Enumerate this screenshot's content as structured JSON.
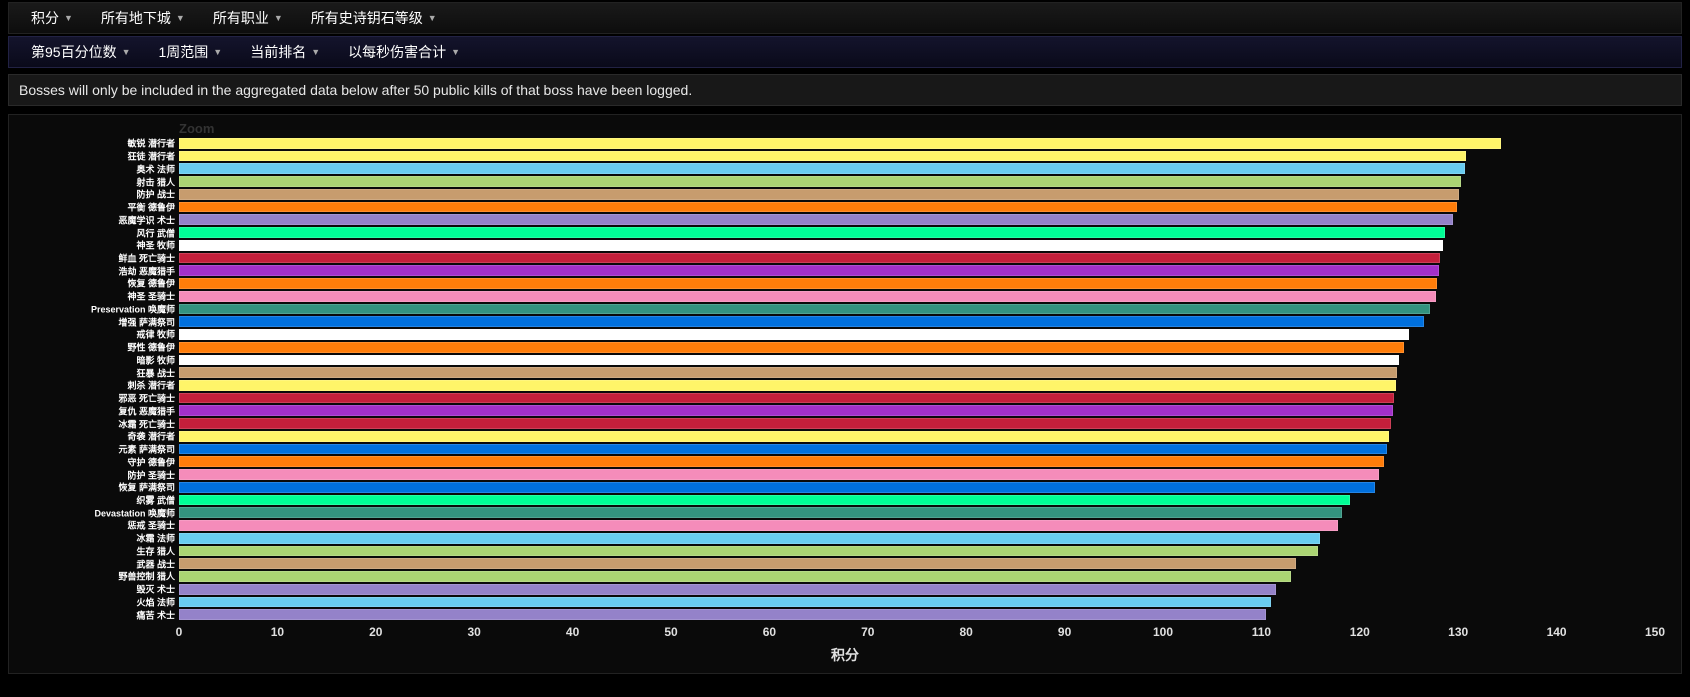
{
  "filters_row1": [
    {
      "label": "积分"
    },
    {
      "label": "所有地下城"
    },
    {
      "label": "所有职业"
    },
    {
      "label": "所有史诗钥石等级"
    }
  ],
  "filters_row2": [
    {
      "label": "第95百分位数"
    },
    {
      "label": "1周范围"
    },
    {
      "label": "当前排名"
    },
    {
      "label": "以每秒伤害合计"
    }
  ],
  "note_text": "Bosses will only be included in the aggregated data below after 50 public kills of that boss have been logged.",
  "zoom_label": "Zoom",
  "chart": {
    "type": "bar-horizontal",
    "x_title": "积分",
    "xlim": [
      0,
      150
    ],
    "xtick_step": 10,
    "background_color": "#0a0a0a",
    "label_color": "#ffffff",
    "tick_color": "#e0e0e0",
    "label_fontsize": 9,
    "tick_fontsize": 12,
    "title_fontsize": 14,
    "bar_border_color": "rgba(255,255,255,0.15)",
    "data": [
      {
        "label": "敏锐 潜行者",
        "value": 134.4,
        "color": "#fff569"
      },
      {
        "label": "狂徒 潜行者",
        "value": 130.8,
        "color": "#fff569"
      },
      {
        "label": "奥术 法师",
        "value": 130.7,
        "color": "#69ccf0"
      },
      {
        "label": "射击 猎人",
        "value": 130.3,
        "color": "#abd473"
      },
      {
        "label": "防护 战士",
        "value": 130.1,
        "color": "#c79c6e"
      },
      {
        "label": "平衡 德鲁伊",
        "value": 129.9,
        "color": "#ff7d0a"
      },
      {
        "label": "恶魔学识 术士",
        "value": 129.5,
        "color": "#9482c9"
      },
      {
        "label": "风行 武僧",
        "value": 128.7,
        "color": "#00ff96"
      },
      {
        "label": "神圣 牧师",
        "value": 128.5,
        "color": "#ffffff"
      },
      {
        "label": "鲜血 死亡骑士",
        "value": 128.2,
        "color": "#c41f3b"
      },
      {
        "label": "浩劫 恶魔猎手",
        "value": 128.0,
        "color": "#a330c9"
      },
      {
        "label": "恢复 德鲁伊",
        "value": 127.8,
        "color": "#ff7d0a"
      },
      {
        "label": "神圣 圣骑士",
        "value": 127.7,
        "color": "#f58cba"
      },
      {
        "label": "Preservation 唤魔师",
        "value": 127.1,
        "color": "#33937f"
      },
      {
        "label": "增强 萨满祭司",
        "value": 126.5,
        "color": "#0070de"
      },
      {
        "label": "戒律 牧师",
        "value": 125.0,
        "color": "#ffffff"
      },
      {
        "label": "野性 德鲁伊",
        "value": 124.5,
        "color": "#ff7d0a"
      },
      {
        "label": "暗影 牧师",
        "value": 124.0,
        "color": "#ffffff"
      },
      {
        "label": "狂暴 战士",
        "value": 123.8,
        "color": "#c79c6e"
      },
      {
        "label": "刺杀 潜行者",
        "value": 123.7,
        "color": "#fff569"
      },
      {
        "label": "邪恶 死亡骑士",
        "value": 123.5,
        "color": "#c41f3b"
      },
      {
        "label": "复仇 恶魔猎手",
        "value": 123.4,
        "color": "#a330c9"
      },
      {
        "label": "冰霜 死亡骑士",
        "value": 123.2,
        "color": "#c41f3b"
      },
      {
        "label": "奇袭 潜行者",
        "value": 123.0,
        "color": "#fff569"
      },
      {
        "label": "元素 萨满祭司",
        "value": 122.8,
        "color": "#0070de"
      },
      {
        "label": "守护 德鲁伊",
        "value": 122.5,
        "color": "#ff7d0a"
      },
      {
        "label": "防护 圣骑士",
        "value": 122.0,
        "color": "#f58cba"
      },
      {
        "label": "恢复 萨满祭司",
        "value": 121.5,
        "color": "#0070de"
      },
      {
        "label": "织雾 武僧",
        "value": 119.0,
        "color": "#00ff96"
      },
      {
        "label": "Devastation 唤魔师",
        "value": 118.2,
        "color": "#33937f"
      },
      {
        "label": "惩戒 圣骑士",
        "value": 117.8,
        "color": "#f58cba"
      },
      {
        "label": "冰霜 法师",
        "value": 116.0,
        "color": "#69ccf0"
      },
      {
        "label": "生存 猎人",
        "value": 115.8,
        "color": "#abd473"
      },
      {
        "label": "武器 战士",
        "value": 113.5,
        "color": "#c79c6e"
      },
      {
        "label": "野兽控制 猎人",
        "value": 113.0,
        "color": "#abd473"
      },
      {
        "label": "毁灭 术士",
        "value": 111.5,
        "color": "#9482c9"
      },
      {
        "label": "火焰 法师",
        "value": 111.0,
        "color": "#69ccf0"
      },
      {
        "label": "痛苦 术士",
        "value": 110.5,
        "color": "#9482c9"
      }
    ]
  }
}
